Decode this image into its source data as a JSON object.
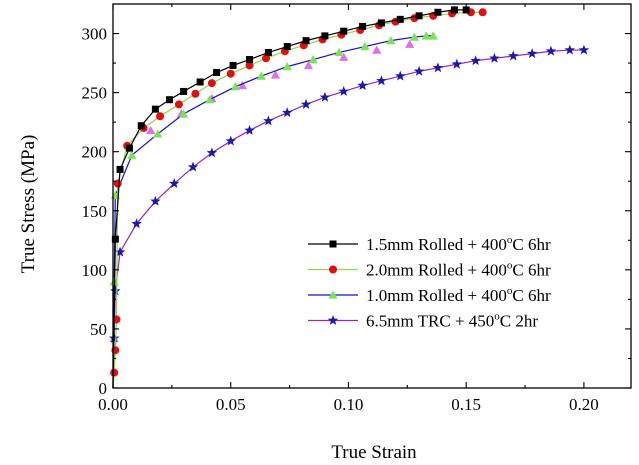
{
  "chart_data": {
    "type": "line",
    "title": "",
    "xlabel": "True Strain",
    "ylabel": "True Stress (MPa)",
    "xlim": [
      0.0,
      0.22
    ],
    "ylim": [
      0,
      325
    ],
    "x_ticks": [
      0.0,
      0.05,
      0.1,
      0.15,
      0.2
    ],
    "x_tick_labels": [
      "0.00",
      "0.05",
      "0.10",
      "0.15",
      "0.20"
    ],
    "y_ticks": [
      0,
      50,
      100,
      150,
      200,
      250,
      300
    ],
    "y_tick_labels": [
      "0",
      "50",
      "100",
      "150",
      "200",
      "250",
      "300"
    ],
    "grid": false,
    "legend_position": "bottom-right",
    "series": [
      {
        "name": "1.5mm Rolled + 400°C 6hr",
        "legend_parts": {
          "main": "1.5mm Rolled + 400",
          "deg": "o",
          "tail": "C 6hr"
        },
        "marker": "square",
        "line_color": "#000000",
        "marker_color": "#000000",
        "x": [
          0.0,
          0.001,
          0.003,
          0.007,
          0.012,
          0.018,
          0.024,
          0.03,
          0.037,
          0.044,
          0.051,
          0.058,
          0.066,
          0.074,
          0.082,
          0.09,
          0.098,
          0.106,
          0.114,
          0.122,
          0.13,
          0.138,
          0.145,
          0.15
        ],
        "y": [
          0,
          126,
          185,
          203,
          222,
          236,
          244,
          251,
          259,
          267,
          273,
          278,
          284,
          289,
          294,
          298,
          302,
          306,
          309,
          312,
          315,
          318,
          320,
          320
        ]
      },
      {
        "name": "2.0mm Rolled + 400°C 6hr",
        "legend_parts": {
          "main": "2.0mm Rolled + 400",
          "deg": "o",
          "tail": "C 6hr"
        },
        "marker": "circle",
        "line_color": "#8fd44a",
        "marker_color": "#e01010",
        "x": [
          0.0,
          0.0005,
          0.001,
          0.0015,
          0.002,
          0.006,
          0.013,
          0.02,
          0.028,
          0.035,
          0.042,
          0.05,
          0.058,
          0.065,
          0.073,
          0.081,
          0.089,
          0.097,
          0.105,
          0.113,
          0.12,
          0.128,
          0.136,
          0.144,
          0.152,
          0.157
        ],
        "y": [
          0,
          13,
          32,
          58,
          173,
          205,
          220,
          230,
          240,
          249,
          258,
          266,
          273,
          279,
          285,
          290,
          295,
          299,
          303,
          307,
          310,
          313,
          315,
          317,
          318,
          318
        ]
      },
      {
        "name": "1.0mm Rolled + 400°C 6hr",
        "legend_parts": {
          "main": "1.0mm Rolled + 400",
          "deg": "o",
          "tail": "C 6hr"
        },
        "marker": "triangle",
        "line_color": "#1010d0",
        "marker_color": "#7fe05a",
        "x": [
          0.0,
          0.0005,
          0.001,
          0.008,
          0.019,
          0.03,
          0.041,
          0.052,
          0.063,
          0.074,
          0.085,
          0.096,
          0.107,
          0.118,
          0.128,
          0.133,
          0.136
        ],
        "y": [
          0,
          90,
          163,
          197,
          215,
          232,
          244,
          255,
          264,
          272,
          278,
          284,
          289,
          294,
          297,
          298,
          298
        ]
      },
      {
        "name": "6.5mm TRC + 450°C 2hr",
        "legend_parts": {
          "main": "6.5mm  TRC   + 450",
          "deg": "o",
          "tail": "C 2hr"
        },
        "marker": "star",
        "line_color": "#a020c0",
        "marker_color": "#1a1aa8",
        "triangle_markers": {
          "x": [
            0.0005,
            0.016,
            0.029,
            0.042,
            0.055,
            0.069,
            0.083,
            0.098,
            0.112,
            0.126
          ],
          "y": [
            42,
            218,
            232,
            245,
            256,
            265,
            273,
            280,
            286,
            291
          ],
          "color": "#e070e8"
        },
        "x": [
          0.0,
          0.0005,
          0.001,
          0.003,
          0.01,
          0.018,
          0.026,
          0.034,
          0.042,
          0.05,
          0.058,
          0.066,
          0.074,
          0.082,
          0.09,
          0.098,
          0.106,
          0.114,
          0.122,
          0.13,
          0.138,
          0.146,
          0.154,
          0.162,
          0.17,
          0.178,
          0.186,
          0.194,
          0.2
        ],
        "y": [
          0,
          42,
          82,
          115,
          139,
          158,
          173,
          187,
          199,
          209,
          218,
          226,
          233,
          240,
          246,
          251,
          256,
          260,
          264,
          268,
          271,
          274,
          277,
          279,
          281,
          283,
          285,
          286,
          286
        ]
      }
    ]
  }
}
